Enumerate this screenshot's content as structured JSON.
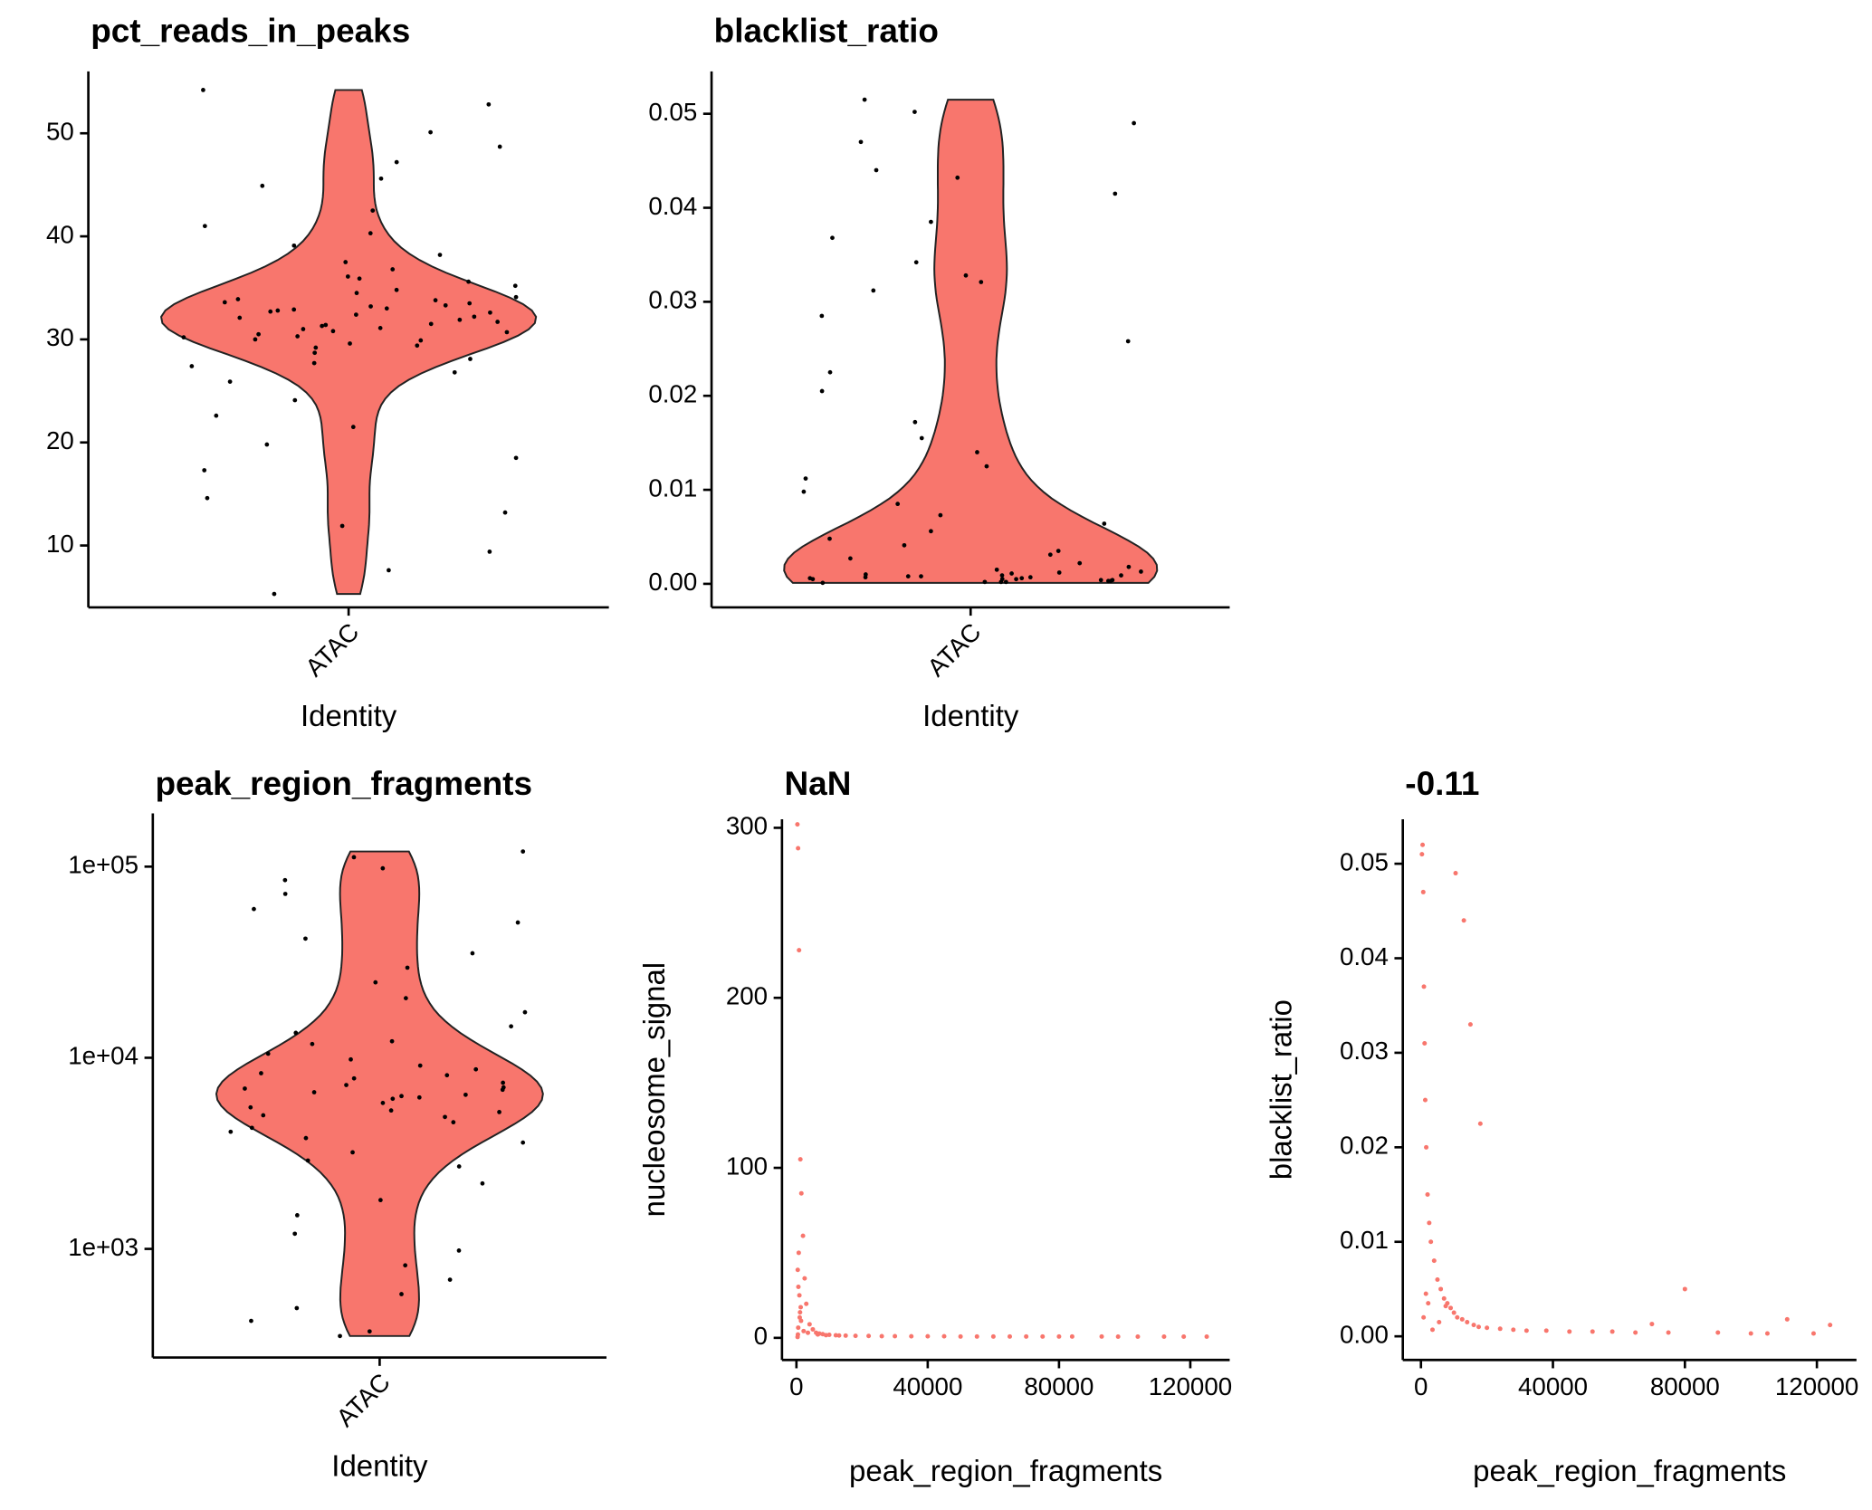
{
  "chart_data": [
    {
      "type": "violin",
      "title": "pct_reads_in_peaks",
      "xlabel": "Identity",
      "categories": [
        "ATAC"
      ],
      "values": [
        32.1,
        31.5,
        33.2,
        30.8,
        32.7,
        31.9,
        33.8,
        29.6,
        34.5,
        32.4,
        30.2,
        31.1,
        33.0,
        28.7,
        35.6,
        32.9,
        31.3,
        30.5,
        34.1,
        29.9,
        32.2,
        33.5,
        27.4,
        36.8,
        31.7,
        30.0,
        38.2,
        25.9,
        32.6,
        33.9,
        24.1,
        40.3,
        31.0,
        29.2,
        42.5,
        22.6,
        34.8,
        30.7,
        44.9,
        19.8,
        33.3,
        28.1,
        47.2,
        17.3,
        36.1,
        26.8,
        50.1,
        14.6,
        31.4,
        35.2,
        52.8,
        11.9,
        30.3,
        37.5,
        54.2,
        9.4,
        32.8,
        39.1,
        7.6,
        45.6,
        21.5,
        5.3,
        48.7,
        13.2,
        33.6,
        29.4,
        41.0,
        18.5,
        35.9,
        27.7
      ],
      "color": "#F8766D",
      "point_color": "#000000",
      "ylim": [
        4,
        56
      ],
      "yticks": [
        10,
        20,
        30,
        40,
        50
      ]
    },
    {
      "type": "violin",
      "title": "blacklist_ratio",
      "xlabel": "Identity",
      "categories": [
        "ATAC"
      ],
      "values": [
        0.0002,
        0.0005,
        0.0008,
        0.0004,
        0.001,
        0.0003,
        0.0006,
        0.0012,
        0.0001,
        0.0007,
        0.0009,
        0.0015,
        0.0002,
        0.0005,
        0.0011,
        0.0018,
        0.0004,
        0.0006,
        0.0022,
        0.0003,
        0.0008,
        0.0027,
        0.0013,
        0.0005,
        0.0031,
        0.0002,
        0.0035,
        0.0009,
        0.0041,
        0.0007,
        0.0048,
        0.0056,
        0.0064,
        0.0073,
        0.0085,
        0.0098,
        0.0112,
        0.0125,
        0.014,
        0.0155,
        0.0172,
        0.0205,
        0.0225,
        0.0258,
        0.0285,
        0.0312,
        0.0321,
        0.0328,
        0.0342,
        0.0368,
        0.0385,
        0.0415,
        0.0432,
        0.044,
        0.047,
        0.049,
        0.0502,
        0.0515
      ],
      "color": "#F8766D",
      "point_color": "#000000",
      "ylim": [
        -0.0025,
        0.0545
      ],
      "yticks": [
        {
          "value": 0,
          "label": "0.00"
        },
        0.01,
        0.02,
        0.03,
        0.04,
        0.05
      ]
    },
    {
      "type": "violin",
      "title": "peak_region_fragments",
      "xlabel": "Identity",
      "categories": [
        "ATAC"
      ],
      "log": true,
      "values": [
        6200,
        5800,
        7400,
        4900,
        8300,
        6600,
        5200,
        9100,
        7000,
        4300,
        10500,
        5500,
        6900,
        3800,
        12200,
        6100,
        7800,
        3200,
        14600,
        5000,
        8700,
        2700,
        17300,
        6400,
        2200,
        20500,
        7200,
        1800,
        24800,
        4600,
        1500,
        29600,
        9800,
        1200,
        35200,
        5300,
        980,
        42000,
        11800,
        820,
        51000,
        6800,
        690,
        60000,
        3600,
        580,
        72000,
        8100,
        490,
        85000,
        2900,
        420,
        98000,
        13500,
        370,
        112000,
        4100,
        350,
        120000,
        6300
      ],
      "color": "#F8766D",
      "point_color": "#000000",
      "ylim": [
        270,
        190000
      ],
      "yticks": [
        {
          "value": 1000,
          "label": "1e+03"
        },
        {
          "value": 10000,
          "label": "1e+04"
        },
        {
          "value": 100000,
          "label": "1e+05"
        }
      ]
    },
    {
      "type": "scatter",
      "title": "NaN",
      "xlabel": "peak_region_fragments",
      "ylabel": "nucleosome_signal",
      "x": [
        300,
        500,
        800,
        1200,
        1500,
        2000,
        2500,
        3000,
        4000,
        5000,
        6000,
        7000,
        8000,
        10000,
        12000,
        15000,
        18000,
        22000,
        26000,
        30000,
        35000,
        40000,
        45000,
        50000,
        55000,
        60000,
        65000,
        70000,
        75000,
        80000,
        84000,
        93000,
        98000,
        104000,
        112000,
        118000,
        125000,
        400,
        600,
        900,
        1100,
        1400,
        700,
        350,
        450,
        550,
        1000,
        1300,
        2200,
        3500,
        6500,
        9000,
        13000
      ],
      "values": [
        302,
        288,
        228,
        105,
        85,
        60,
        35,
        20,
        8,
        5,
        3,
        2.5,
        2.2,
        1.8,
        1.5,
        1.3,
        1.2,
        1.1,
        1,
        1,
        0.9,
        0.9,
        0.9,
        0.8,
        0.8,
        0.8,
        0.8,
        0.8,
        0.8,
        0.8,
        0.8,
        0.8,
        0.7,
        0.7,
        0.7,
        0.7,
        0.7,
        40,
        30,
        25,
        15,
        10,
        50,
        0.5,
        2,
        6,
        12,
        18,
        4,
        3,
        2,
        1.6,
        1.4
      ],
      "color": "#F8766D",
      "xlim": [
        -4400,
        132000
      ],
      "ylim": [
        -13,
        305
      ],
      "xticks": [
        0,
        40000,
        80000,
        120000
      ],
      "yticks": [
        0,
        100,
        200,
        300
      ]
    },
    {
      "type": "scatter",
      "title": "-0.11",
      "xlabel": "peak_region_fragments",
      "ylabel": "blacklist_ratio",
      "x": [
        300,
        500,
        700,
        900,
        1100,
        1300,
        1600,
        2000,
        2500,
        3000,
        4000,
        5000,
        6000,
        7000,
        8000,
        9000,
        10000,
        11000,
        12500,
        14000,
        16000,
        17500,
        20000,
        24000,
        28000,
        32000,
        38000,
        45000,
        52000,
        58000,
        65000,
        70000,
        75000,
        80000,
        90000,
        100000,
        105000,
        111000,
        119000,
        124000,
        800,
        1500,
        2200,
        3500,
        5500,
        7500,
        10500,
        13000,
        15000,
        18000
      ],
      "values": [
        0.051,
        0.052,
        0.047,
        0.037,
        0.031,
        0.025,
        0.02,
        0.015,
        0.012,
        0.01,
        0.008,
        0.006,
        0.005,
        0.004,
        0.0035,
        0.003,
        0.0025,
        0.002,
        0.0018,
        0.0015,
        0.0012,
        0.001,
        0.0009,
        0.0008,
        0.0007,
        0.0006,
        0.0006,
        0.0005,
        0.0005,
        0.0005,
        0.0004,
        0.0013,
        0.0004,
        0.005,
        0.0004,
        0.0003,
        0.0003,
        0.0018,
        0.0003,
        0.0012,
        0.002,
        0.0045,
        0.0035,
        0.0007,
        0.0015,
        0.0032,
        0.049,
        0.044,
        0.033,
        0.0225
      ],
      "color": "#F8766D",
      "xlim": [
        -5500,
        132000
      ],
      "ylim": [
        -0.0025,
        0.0547
      ],
      "xticks": [
        0,
        40000,
        80000,
        120000
      ],
      "yticks": [
        {
          "value": 0,
          "label": "0.00"
        },
        0.01,
        0.02,
        0.03,
        0.04,
        0.05
      ]
    }
  ]
}
